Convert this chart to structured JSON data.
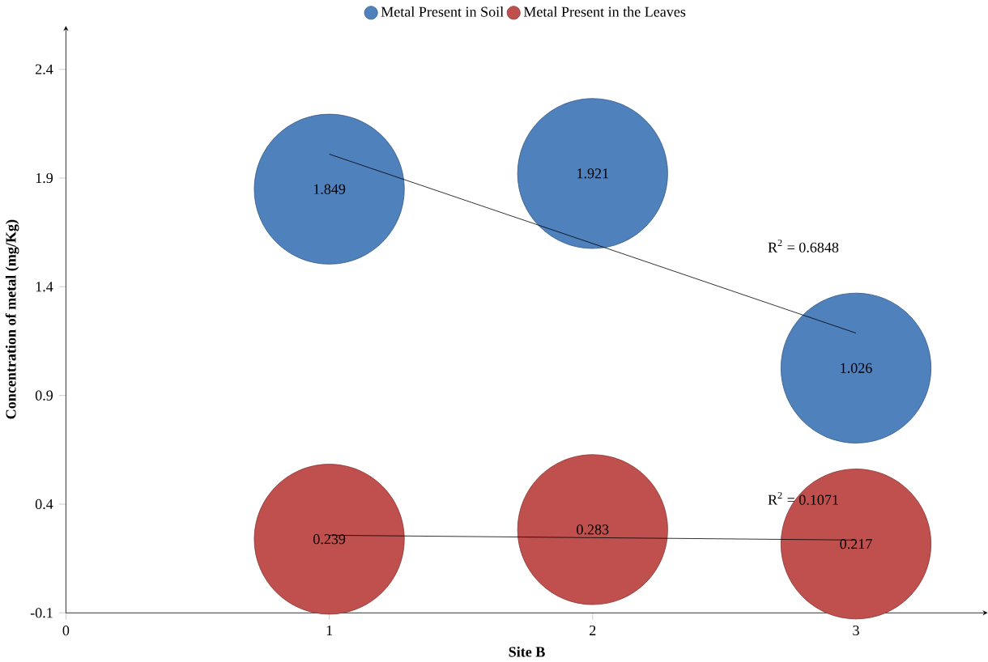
{
  "chart_data": {
    "type": "bubble",
    "xlabel": "Site B",
    "ylabel": "Concentration of metal (mg/Kg)",
    "x": [
      1,
      2,
      3
    ],
    "series": [
      {
        "name": "Metal Present in Soil",
        "color": "#4f81bd",
        "values": [
          1.849,
          1.921,
          1.026
        ],
        "sizes": [
          1,
          1,
          1
        ],
        "value_labels": [
          "1.849",
          "1.921",
          "1.026"
        ]
      },
      {
        "name": "Metal Present in the Leaves",
        "color": "#c0504d",
        "values": [
          0.239,
          0.283,
          0.217
        ],
        "sizes": [
          1,
          1,
          1
        ],
        "value_labels": [
          "0.239",
          "0.283",
          "0.217"
        ]
      },
      {
        "type": "line",
        "color": "#000000",
        "values": [
          2.01,
          1.599,
          1.187
        ]
      },
      {
        "type": "line",
        "color": "#000000",
        "values": [
          0.257,
          0.246,
          0.235
        ]
      }
    ],
    "annotations": [
      "R$^{2}$ = 0.6848",
      "R$^{2}$ = 0.1071"
    ],
    "legend": "top",
    "xlim": [
      0,
      3.5
    ],
    "ylim": [
      -0.1,
      2.6
    ],
    "xticks": [
      0,
      1,
      2,
      3
    ],
    "yticks": [
      -0.1,
      0.4,
      0.9,
      1.4,
      1.9,
      2.4
    ]
  }
}
